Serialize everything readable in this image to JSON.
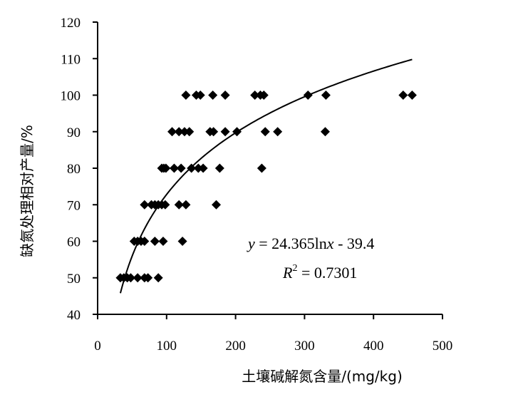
{
  "chart_data": {
    "type": "scatter",
    "xlabel": "土壤碱解氮含量/(mg/kg)",
    "ylabel": "缺氮处理相对产量/%",
    "xlim": [
      0,
      500
    ],
    "ylim": [
      40,
      120
    ],
    "xticks": [
      0,
      100,
      200,
      300,
      400,
      500
    ],
    "yticks": [
      40,
      50,
      60,
      70,
      80,
      90,
      100,
      110,
      120
    ],
    "grid": false,
    "marker": "diamond",
    "marker_color": "#000000",
    "points": [
      [
        33,
        50
      ],
      [
        38,
        50
      ],
      [
        43,
        50
      ],
      [
        48,
        50
      ],
      [
        58,
        50
      ],
      [
        68,
        50
      ],
      [
        73,
        50
      ],
      [
        88,
        50
      ],
      [
        53,
        60
      ],
      [
        58,
        60
      ],
      [
        63,
        60
      ],
      [
        68,
        60
      ],
      [
        83,
        60
      ],
      [
        95,
        60
      ],
      [
        123,
        60
      ],
      [
        68,
        70
      ],
      [
        78,
        70
      ],
      [
        83,
        70
      ],
      [
        88,
        70
      ],
      [
        93,
        70
      ],
      [
        98,
        70
      ],
      [
        118,
        70
      ],
      [
        128,
        70
      ],
      [
        172,
        70
      ],
      [
        93,
        80
      ],
      [
        96,
        80
      ],
      [
        99,
        80
      ],
      [
        111,
        80
      ],
      [
        121,
        80
      ],
      [
        136,
        80
      ],
      [
        146,
        80
      ],
      [
        153,
        80
      ],
      [
        177,
        80
      ],
      [
        238,
        80
      ],
      [
        108,
        90
      ],
      [
        118,
        90
      ],
      [
        126,
        90
      ],
      [
        133,
        90
      ],
      [
        163,
        90
      ],
      [
        168,
        90
      ],
      [
        185,
        90
      ],
      [
        202,
        90
      ],
      [
        243,
        90
      ],
      [
        261,
        90
      ],
      [
        330,
        90
      ],
      [
        128,
        100
      ],
      [
        143,
        100
      ],
      [
        149,
        100
      ],
      [
        167,
        100
      ],
      [
        185,
        100
      ],
      [
        228,
        100
      ],
      [
        236,
        100
      ],
      [
        241,
        100
      ],
      [
        305,
        100
      ],
      [
        331,
        100
      ],
      [
        443,
        100
      ],
      [
        456,
        100
      ]
    ],
    "trendline": {
      "type": "logarithmic",
      "a": 24.365,
      "b": -39.4,
      "x_range": [
        33,
        456
      ]
    },
    "annotations": {
      "eq_y": "y",
      "eq_body": " = 24.365ln",
      "eq_x": "x",
      "eq_tail": " - 39.4",
      "r2_r": "R",
      "r2_exp": "2",
      "r2_tail": " = 0.7301"
    }
  }
}
